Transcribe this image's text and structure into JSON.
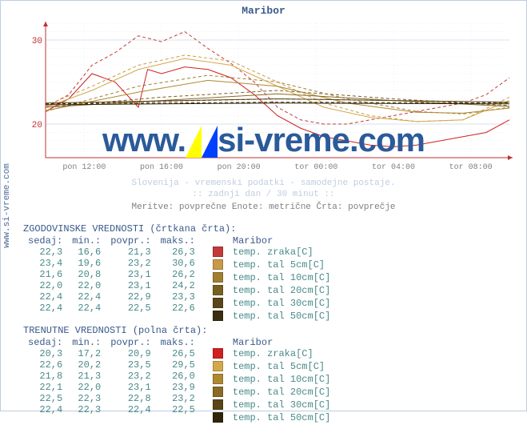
{
  "site": {
    "label": "www.si-vreme.com",
    "color": "#4a6a9a"
  },
  "title": {
    "text": "Maribor",
    "color": "#3a5a8a"
  },
  "chart": {
    "type": "line",
    "background_color": "#ffffff",
    "grid_color": "#d8e0ec",
    "axis_color": "#c03030",
    "ylim": [
      16,
      32
    ],
    "ytick_step": 10,
    "yticks": [
      20,
      30
    ],
    "xticks": [
      "pon 12:00",
      "pon 16:00",
      "pon 20:00",
      "tor 00:00",
      "tor 04:00",
      "tor 08:00"
    ],
    "tick_fontsize": 10,
    "tick_color": "#808080",
    "line_width": 1,
    "series": [
      {
        "name": "hist temp. zraka",
        "color": "#c43a3a",
        "dash": true,
        "points": [
          [
            0,
            22.0
          ],
          [
            5,
            23.5
          ],
          [
            10,
            27.0
          ],
          [
            15,
            28.5
          ],
          [
            20,
            30.5
          ],
          [
            25,
            29.8
          ],
          [
            30,
            31.0
          ],
          [
            35,
            29.0
          ],
          [
            40,
            27.2
          ],
          [
            45,
            25.0
          ],
          [
            50,
            22.0
          ],
          [
            55,
            20.5
          ],
          [
            60,
            20.0
          ],
          [
            65,
            20.0
          ],
          [
            70,
            20.5
          ],
          [
            75,
            21.0
          ],
          [
            80,
            21.5
          ],
          [
            85,
            22.0
          ],
          [
            90,
            22.5
          ],
          [
            95,
            23.5
          ],
          [
            100,
            25.5
          ]
        ]
      },
      {
        "name": "hist temp. tal 5cm",
        "color": "#c79a4a",
        "dash": true,
        "points": [
          [
            0,
            22.2
          ],
          [
            10,
            24.5
          ],
          [
            20,
            27.0
          ],
          [
            30,
            28.2
          ],
          [
            40,
            27.5
          ],
          [
            50,
            25.0
          ],
          [
            60,
            22.5
          ],
          [
            70,
            21.0
          ],
          [
            80,
            20.3
          ],
          [
            90,
            20.5
          ],
          [
            100,
            23.2
          ]
        ]
      },
      {
        "name": "hist temp. tal 10cm",
        "color": "#a08030",
        "dash": true,
        "points": [
          [
            0,
            21.5
          ],
          [
            20,
            24.5
          ],
          [
            35,
            25.8
          ],
          [
            50,
            25.0
          ],
          [
            65,
            23.0
          ],
          [
            80,
            21.5
          ],
          [
            90,
            21.2
          ],
          [
            100,
            22.0
          ]
        ]
      },
      {
        "name": "hist temp. tal 20cm",
        "color": "#7a6020",
        "dash": true,
        "points": [
          [
            0,
            22.0
          ],
          [
            25,
            23.2
          ],
          [
            50,
            24.0
          ],
          [
            75,
            23.0
          ],
          [
            100,
            22.2
          ]
        ]
      },
      {
        "name": "hist temp. tal 30cm",
        "color": "#5a4518",
        "dash": true,
        "points": [
          [
            0,
            22.4
          ],
          [
            50,
            23.0
          ],
          [
            100,
            22.6
          ]
        ]
      },
      {
        "name": "hist temp. tal 50cm",
        "color": "#3a2e10",
        "dash": true,
        "points": [
          [
            0,
            22.4
          ],
          [
            50,
            22.6
          ],
          [
            100,
            22.5
          ]
        ]
      },
      {
        "name": "cur temp. zraka",
        "color": "#d02020",
        "dash": false,
        "points": [
          [
            0,
            21.5
          ],
          [
            5,
            23.0
          ],
          [
            10,
            26.0
          ],
          [
            15,
            25.0
          ],
          [
            20,
            22.0
          ],
          [
            22,
            26.5
          ],
          [
            25,
            26.0
          ],
          [
            30,
            26.8
          ],
          [
            35,
            26.5
          ],
          [
            40,
            25.5
          ],
          [
            45,
            23.5
          ],
          [
            50,
            21.0
          ],
          [
            55,
            19.5
          ],
          [
            60,
            18.5
          ],
          [
            65,
            18.0
          ],
          [
            70,
            17.5
          ],
          [
            75,
            17.3
          ],
          [
            80,
            17.5
          ],
          [
            85,
            18.0
          ],
          [
            90,
            18.5
          ],
          [
            95,
            19.0
          ],
          [
            100,
            20.5
          ]
        ]
      },
      {
        "name": "cur temp. tal 5cm",
        "color": "#d4a84a",
        "dash": false,
        "points": [
          [
            0,
            22.0
          ],
          [
            10,
            24.0
          ],
          [
            20,
            26.5
          ],
          [
            30,
            27.8
          ],
          [
            40,
            27.0
          ],
          [
            50,
            24.5
          ],
          [
            60,
            22.0
          ],
          [
            70,
            20.8
          ],
          [
            80,
            20.3
          ],
          [
            90,
            20.5
          ],
          [
            100,
            22.8
          ]
        ]
      },
      {
        "name": "cur temp. tal 10cm",
        "color": "#b08830",
        "dash": false,
        "points": [
          [
            0,
            21.6
          ],
          [
            20,
            23.8
          ],
          [
            35,
            25.2
          ],
          [
            50,
            24.5
          ],
          [
            65,
            22.5
          ],
          [
            80,
            21.4
          ],
          [
            90,
            21.3
          ],
          [
            100,
            21.9
          ]
        ]
      },
      {
        "name": "cur temp. tal 20cm",
        "color": "#8a6a25",
        "dash": false,
        "points": [
          [
            0,
            22.0
          ],
          [
            25,
            22.8
          ],
          [
            50,
            23.6
          ],
          [
            75,
            22.8
          ],
          [
            100,
            22.1
          ]
        ]
      },
      {
        "name": "cur temp. tal 30cm",
        "color": "#5a4518",
        "dash": false,
        "points": [
          [
            0,
            22.5
          ],
          [
            50,
            23.0
          ],
          [
            100,
            22.6
          ]
        ]
      },
      {
        "name": "cur temp. tal 50cm",
        "color": "#302508",
        "dash": false,
        "points": [
          [
            0,
            22.3
          ],
          [
            50,
            22.5
          ],
          [
            100,
            22.4
          ]
        ]
      }
    ]
  },
  "watermark": {
    "text_left": "www.",
    "text_mid": "si-vreme",
    "text_right": ".com",
    "color": "#2a5a9a",
    "fontsize": 42,
    "logo_colors": [
      "#ffff00",
      "#0040ff"
    ]
  },
  "meta": {
    "line1": "Slovenija - vremenski podatki - samodejne postaje.",
    "line2": ":: zadnji dan / 30 minut ::",
    "line3": "Meritve: povprečne  Enote: metrične  Črta: povprečje",
    "faded_color": "#bfcde0",
    "normal_color": "#808080"
  },
  "tables": {
    "header_color": "#3a5a8a",
    "value_color": "#4a8a8a",
    "columns": [
      "sedaj:",
      "min.:",
      "povpr.:",
      "maks.:"
    ],
    "station_label": "Maribor",
    "legend_items": [
      {
        "label": "temp. zraka[C]",
        "hist_color": "#c43a3a",
        "cur_color": "#d02020"
      },
      {
        "label": "temp. tal  5cm[C]",
        "hist_color": "#c79a4a",
        "cur_color": "#d4a84a"
      },
      {
        "label": "temp. tal 10cm[C]",
        "hist_color": "#a08030",
        "cur_color": "#b08830"
      },
      {
        "label": "temp. tal 20cm[C]",
        "hist_color": "#7a6020",
        "cur_color": "#8a6a25"
      },
      {
        "label": "temp. tal 30cm[C]",
        "hist_color": "#5a4518",
        "cur_color": "#5a4518"
      },
      {
        "label": "temp. tal 50cm[C]",
        "hist_color": "#3a2e10",
        "cur_color": "#302508"
      }
    ],
    "historical": {
      "title": "ZGODOVINSKE VREDNOSTI (črtkana črta):",
      "rows": [
        [
          "22,3",
          "16,6",
          "21,3",
          "26,3"
        ],
        [
          "23,4",
          "19,6",
          "23,2",
          "30,6"
        ],
        [
          "21,6",
          "20,8",
          "23,1",
          "26,2"
        ],
        [
          "22,0",
          "22,0",
          "23,1",
          "24,2"
        ],
        [
          "22,4",
          "22,4",
          "22,9",
          "23,3"
        ],
        [
          "22,4",
          "22,4",
          "22,5",
          "22,6"
        ]
      ]
    },
    "current": {
      "title": "TRENUTNE VREDNOSTI (polna črta):",
      "rows": [
        [
          "20,3",
          "17,2",
          "20,9",
          "26,5"
        ],
        [
          "22,6",
          "20,2",
          "23,5",
          "29,5"
        ],
        [
          "21,8",
          "21,3",
          "23,2",
          "26,0"
        ],
        [
          "22,1",
          "22,0",
          "23,1",
          "23,9"
        ],
        [
          "22,5",
          "22,3",
          "22,8",
          "23,2"
        ],
        [
          "22,4",
          "22,3",
          "22,4",
          "22,5"
        ]
      ]
    }
  }
}
